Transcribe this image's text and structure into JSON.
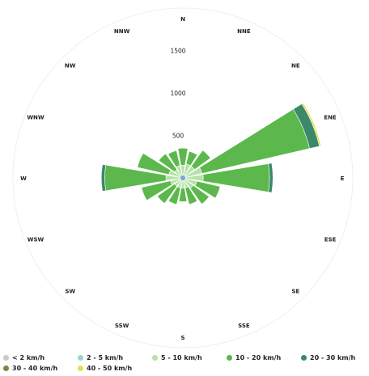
{
  "chart_data": {
    "type": "wind-rose",
    "directions": [
      "N",
      "NNE",
      "NE",
      "ENE",
      "E",
      "ESE",
      "SE",
      "SSE",
      "S",
      "SSW",
      "SW",
      "WSW",
      "W",
      "WNW",
      "NW",
      "NNW"
    ],
    "radial_ticks": [
      500,
      1000,
      1500
    ],
    "radial_max": 2000,
    "series": [
      {
        "name": "< 2 km/h",
        "color": "#c9c9c9",
        "values": [
          0,
          0,
          0,
          0,
          0,
          0,
          0,
          0,
          0,
          0,
          0,
          0,
          0,
          0,
          0,
          0
        ]
      },
      {
        "name": "2 - 5 km/h",
        "color": "#9ad6c8",
        "values": [
          0,
          0,
          0,
          30,
          30,
          0,
          0,
          0,
          0,
          0,
          0,
          0,
          30,
          0,
          0,
          0
        ]
      },
      {
        "name": "5 - 10 km/h",
        "color": "#b5e2a8",
        "values": [
          150,
          170,
          170,
          200,
          210,
          170,
          150,
          120,
          120,
          120,
          120,
          150,
          170,
          170,
          120,
          150
        ]
      },
      {
        "name": "10 - 20 km/h",
        "color": "#5cb84c",
        "values": [
          200,
          150,
          230,
          1300,
          780,
          280,
          230,
          200,
          160,
          200,
          250,
          350,
          720,
          380,
          230,
          180
        ]
      },
      {
        "name": "20 - 30 km/h",
        "color": "#3a8a6a",
        "values": [
          0,
          0,
          0,
          120,
          40,
          0,
          0,
          0,
          0,
          0,
          0,
          0,
          40,
          0,
          0,
          0
        ]
      },
      {
        "name": "30 - 40 km/h",
        "color": "#7a8a3a",
        "values": [
          0,
          0,
          0,
          0,
          0,
          0,
          0,
          0,
          0,
          0,
          0,
          0,
          0,
          0,
          0,
          0
        ]
      },
      {
        "name": "40 - 50 km/h",
        "color": "#e3e04a",
        "values": [
          0,
          0,
          0,
          20,
          0,
          0,
          0,
          0,
          0,
          0,
          0,
          0,
          0,
          0,
          0,
          0
        ]
      }
    ]
  }
}
